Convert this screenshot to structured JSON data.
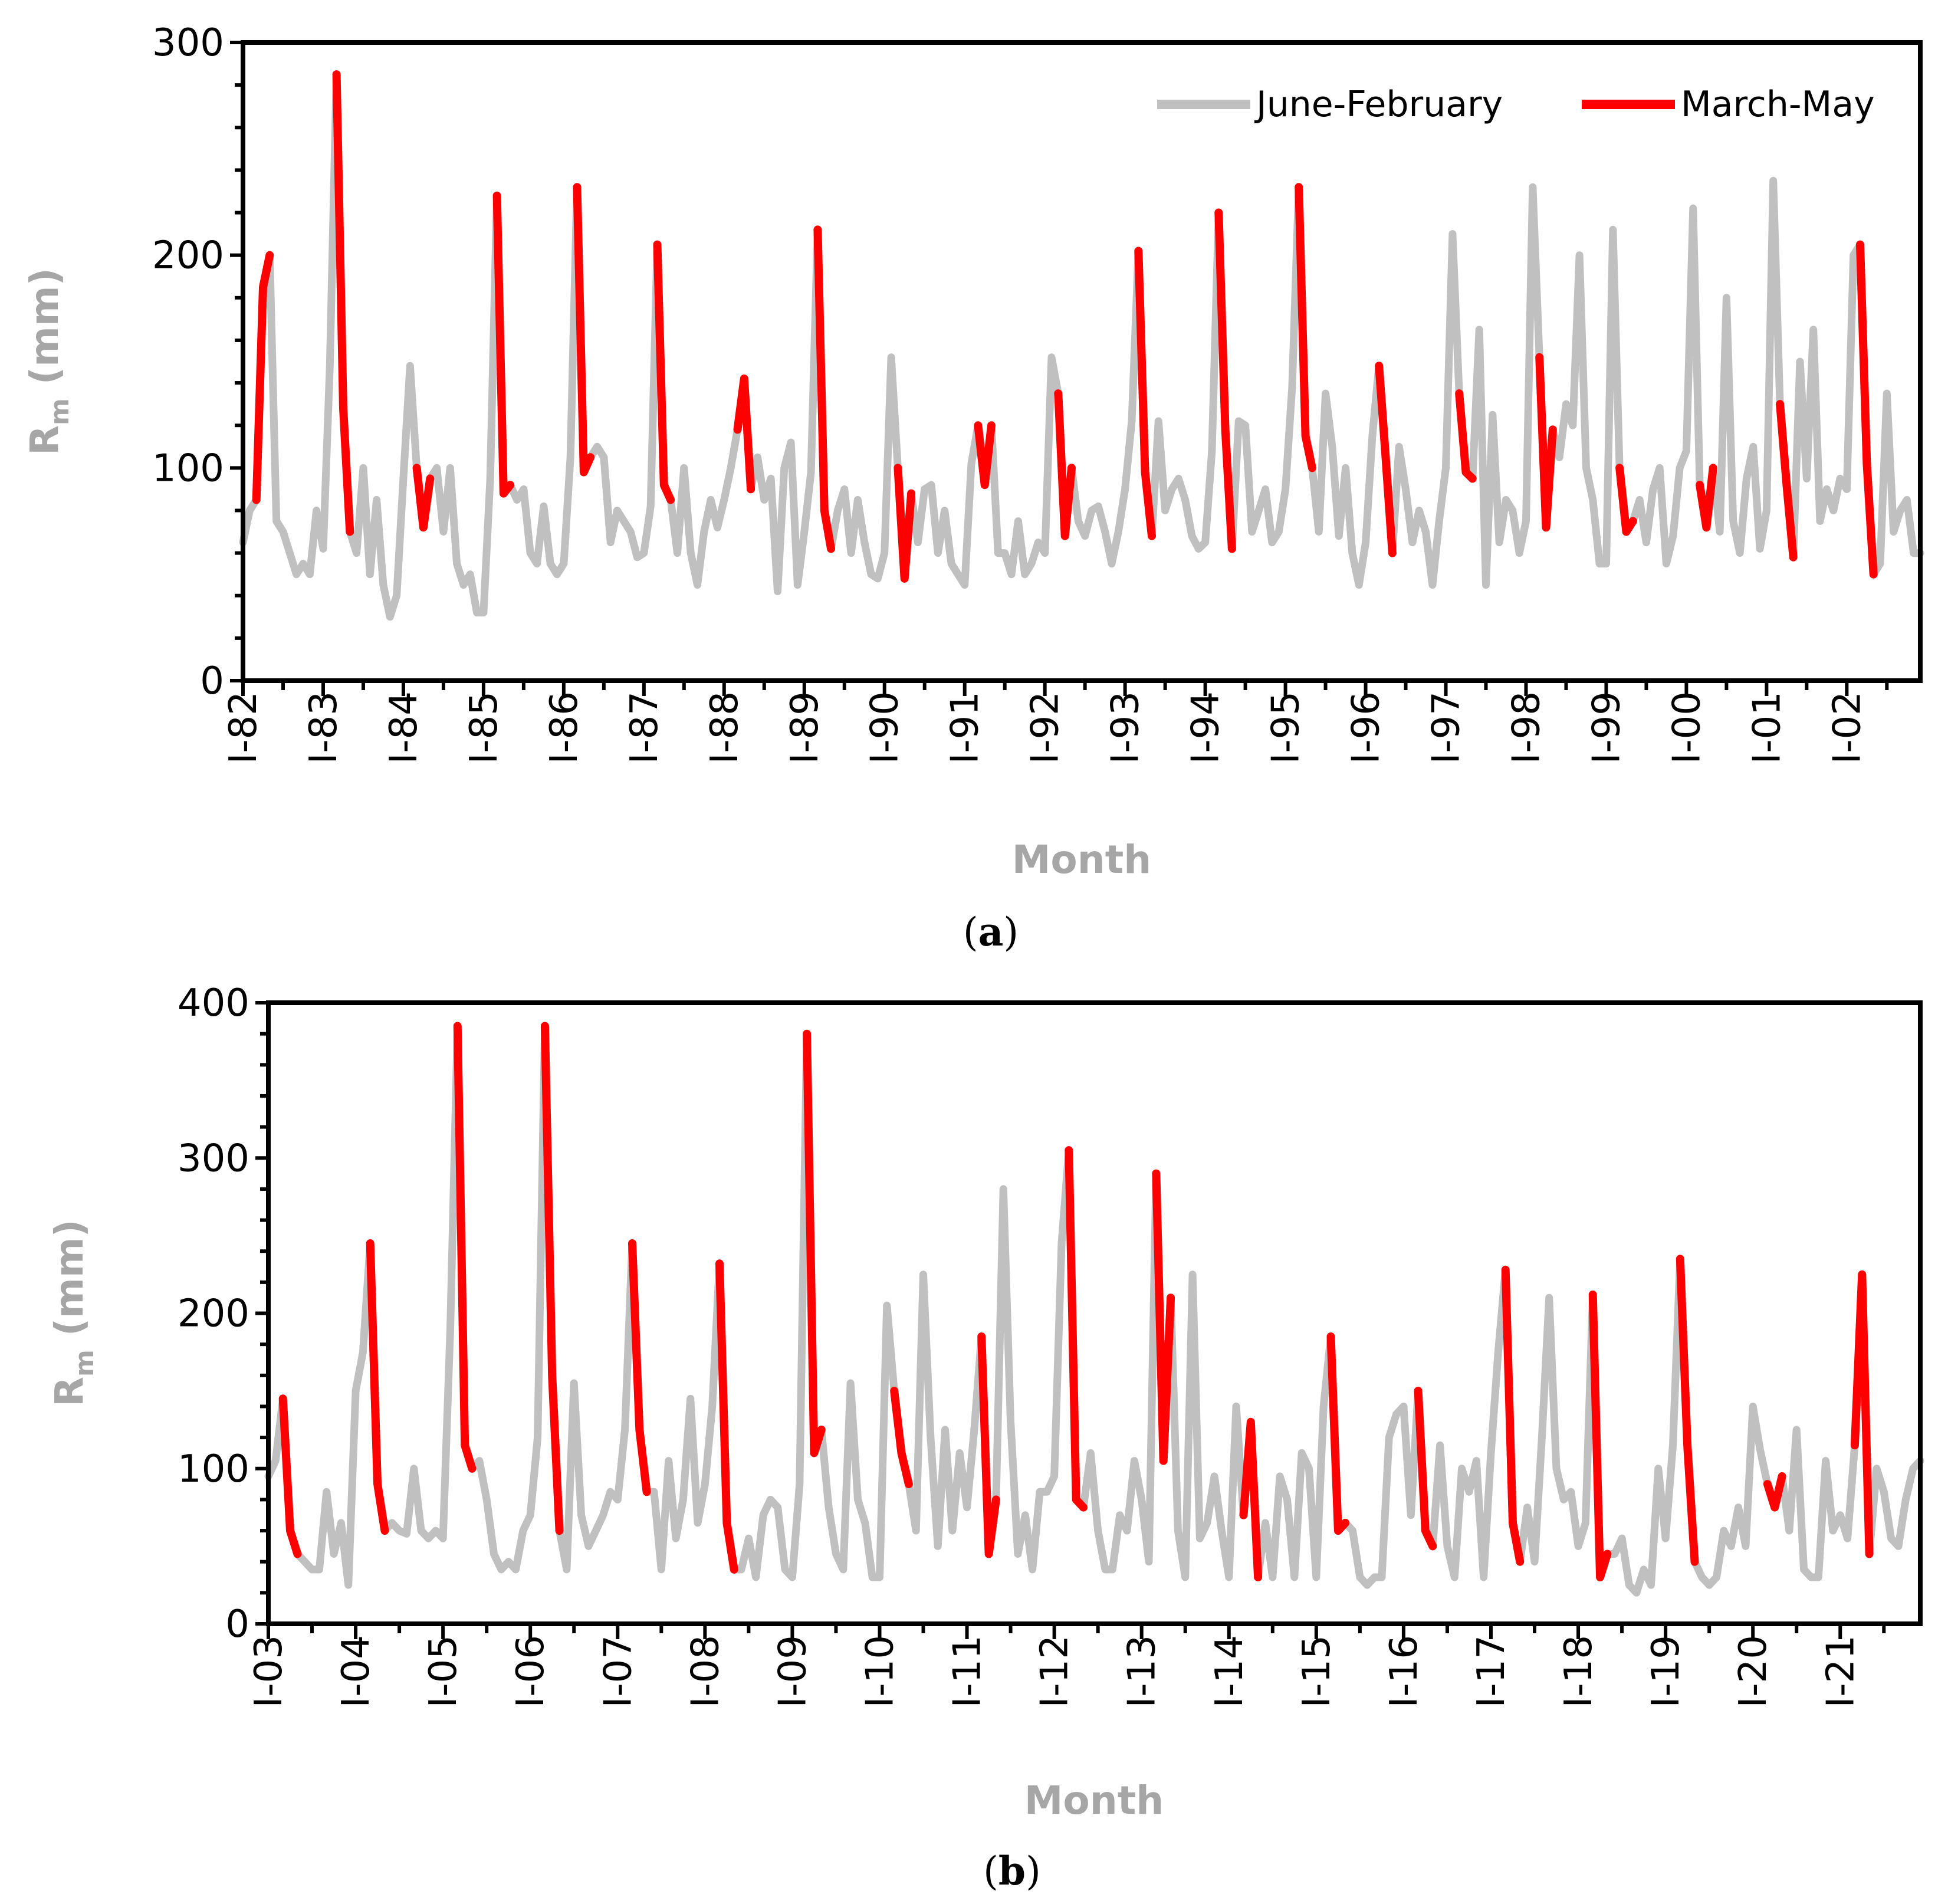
{
  "colors": {
    "june_february": "#c0c0c0",
    "march_may": "#ff0000",
    "axis": "#000000",
    "axis_title": "#a6a6a6"
  },
  "chart_data": [
    {
      "type": "line",
      "panel": "a",
      "caption_letter": "a",
      "xlabel": "Month",
      "ylabel": {
        "main": "R",
        "sub": "m",
        "unit": " (mm)"
      },
      "ylim": [
        0,
        300
      ],
      "yticks": [
        "0",
        "100",
        "200",
        "300"
      ],
      "grid": false,
      "legend": {
        "placement": "top-right",
        "entries": [
          "June-February",
          "March-May"
        ]
      },
      "start_year": 1982,
      "x_tick_labels": [
        "I-82",
        "I-83",
        "I-84",
        "I-85",
        "I-86",
        "I-87",
        "I-88",
        "I-89",
        "I-90",
        "I-91",
        "I-92",
        "I-93",
        "I-94",
        "I-95",
        "I-96",
        "I-97",
        "I-98",
        "I-99",
        "I-00",
        "I-01",
        "I-02"
      ],
      "series_note": "12 monthly values per year (Jan-Dec); March-May highlighted in red, June-February in grey",
      "values_by_year": [
        [
          65,
          80,
          85,
          185,
          200,
          75,
          70,
          60,
          50,
          55,
          50,
          80
        ],
        [
          62,
          148,
          285,
          128,
          70,
          60,
          100,
          50,
          85,
          45,
          30,
          40
        ],
        [
          95,
          148,
          100,
          72,
          95,
          100,
          70,
          100,
          55,
          45,
          50,
          32
        ],
        [
          32,
          95,
          228,
          88,
          92,
          85,
          90,
          60,
          55,
          82,
          55,
          50
        ],
        [
          55,
          105,
          232,
          98,
          105,
          110,
          105,
          65,
          80,
          75,
          70,
          58
        ],
        [
          60,
          82,
          205,
          92,
          85,
          60,
          100,
          60,
          45,
          70,
          85,
          72
        ],
        [
          85,
          100,
          118,
          142,
          90,
          105,
          85,
          95,
          42,
          100,
          112,
          45
        ],
        [
          70,
          98,
          212,
          80,
          62,
          80,
          90,
          60,
          85,
          65,
          50,
          48
        ],
        [
          60,
          152,
          100,
          48,
          88,
          65,
          90,
          92,
          60,
          80,
          55,
          50
        ],
        [
          45,
          102,
          120,
          92,
          120,
          60,
          60,
          50,
          75,
          50,
          55,
          65
        ],
        [
          60,
          152,
          135,
          68,
          100,
          75,
          68,
          80,
          82,
          70,
          55,
          70
        ],
        [
          90,
          122,
          202,
          98,
          68,
          122,
          80,
          90,
          95,
          85,
          68,
          62
        ],
        [
          65,
          108,
          220,
          118,
          62,
          122,
          120,
          70,
          80,
          90,
          65,
          70
        ],
        [
          90,
          138,
          232,
          115,
          100,
          70,
          135,
          110,
          68,
          100,
          60,
          45
        ],
        [
          65,
          115,
          148,
          105,
          60,
          110,
          90,
          65,
          80,
          70,
          45,
          75
        ],
        [
          100,
          210,
          135,
          98,
          95,
          165,
          45,
          125,
          65,
          85,
          80,
          60
        ],
        [
          75,
          232,
          152,
          72,
          118,
          105,
          130,
          120,
          200,
          100,
          85,
          55
        ],
        [
          55,
          212,
          100,
          70,
          75,
          85,
          65,
          90,
          100,
          55,
          68,
          100
        ],
        [
          108,
          222,
          92,
          72,
          100,
          70,
          180,
          75,
          60,
          95,
          110,
          62
        ],
        [
          80,
          235,
          130,
          92,
          58,
          150,
          95,
          165,
          75,
          90,
          80,
          95
        ],
        [
          90,
          200,
          205,
          102,
          50,
          55,
          135,
          70,
          80,
          85,
          60,
          60
        ]
      ]
    },
    {
      "type": "line",
      "panel": "b",
      "caption_letter": "b",
      "xlabel": "Month",
      "ylabel": {
        "main": "R",
        "sub": "m",
        "unit": " (mm)"
      },
      "ylim": [
        0,
        400
      ],
      "yticks": [
        "0",
        "100",
        "200",
        "300",
        "400"
      ],
      "grid": false,
      "legend": null,
      "start_year": 2003,
      "x_tick_labels": [
        "I-03",
        "I-04",
        "I-05",
        "I-06",
        "I-07",
        "I-08",
        "I-09",
        "I-10",
        "I-11",
        "I-12",
        "I-13",
        "I-14",
        "I-15",
        "I-16",
        "I-17",
        "I-18",
        "I-19",
        "I-20",
        "I-21"
      ],
      "series_note": "12 monthly values per year (Jan-Dec); March-May highlighted in red, June-February in grey",
      "values_by_year": [
        [
          95,
          105,
          145,
          60,
          45,
          40,
          35,
          35,
          85,
          45,
          65,
          25
        ],
        [
          150,
          175,
          245,
          90,
          60,
          65,
          60,
          58,
          100,
          60,
          55,
          60
        ],
        [
          55,
          190,
          385,
          115,
          100,
          105,
          80,
          45,
          35,
          40,
          35,
          60
        ],
        [
          70,
          120,
          385,
          160,
          60,
          35,
          155,
          70,
          50,
          60,
          70,
          85
        ],
        [
          80,
          125,
          245,
          125,
          85,
          85,
          35,
          105,
          55,
          80,
          145,
          65
        ],
        [
          90,
          140,
          232,
          65,
          35,
          35,
          55,
          30,
          70,
          80,
          75,
          35
        ],
        [
          30,
          90,
          380,
          110,
          125,
          75,
          45,
          35,
          155,
          80,
          65,
          30
        ],
        [
          30,
          205,
          150,
          110,
          90,
          60,
          225,
          120,
          50,
          125,
          60,
          110
        ],
        [
          75,
          125,
          185,
          45,
          80,
          280,
          130,
          45,
          70,
          35,
          85,
          85
        ],
        [
          95,
          245,
          305,
          80,
          75,
          110,
          60,
          35,
          35,
          70,
          60,
          105
        ],
        [
          80,
          40,
          290,
          105,
          210,
          60,
          30,
          225,
          55,
          65,
          95,
          60
        ],
        [
          30,
          140,
          70,
          130,
          30,
          65,
          30,
          95,
          80,
          30,
          110,
          100
        ],
        [
          30,
          140,
          185,
          60,
          65,
          60,
          30,
          25,
          30,
          30,
          120,
          135
        ],
        [
          140,
          70,
          150,
          60,
          50,
          115,
          50,
          30,
          100,
          85,
          105,
          30
        ],
        [
          110,
          175,
          228,
          65,
          40,
          75,
          40,
          120,
          210,
          100,
          80,
          85
        ],
        [
          50,
          65,
          212,
          30,
          45,
          45,
          55,
          25,
          20,
          35,
          25,
          100
        ],
        [
          55,
          115,
          235,
          115,
          40,
          30,
          25,
          30,
          60,
          50,
          75,
          50
        ],
        [
          140,
          112,
          90,
          75,
          95,
          60,
          125,
          35,
          30,
          30,
          105,
          60
        ],
        [
          70,
          55,
          115,
          225,
          45,
          100,
          85,
          55,
          50,
          80,
          100,
          105
        ]
      ]
    }
  ]
}
